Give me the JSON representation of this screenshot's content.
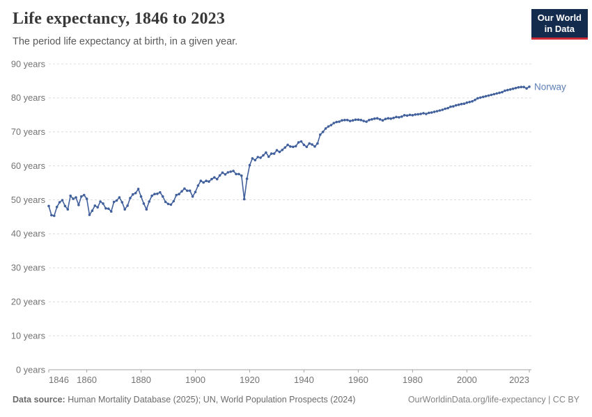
{
  "header": {
    "title": "Life expectancy, 1846 to 2023",
    "subtitle": "The period life expectancy at birth, in a given year.",
    "logo": {
      "line1": "Our World",
      "line2": "in Data",
      "bg_color": "#132c4e",
      "accent_color": "#cc2b36"
    }
  },
  "chart_data": {
    "type": "line",
    "title": "Life expectancy, 1846 to 2023",
    "xlabel": "",
    "ylabel": "years",
    "x_range": [
      1846,
      2023
    ],
    "ylim": [
      0,
      90
    ],
    "grid": "horizontal-dashed",
    "legend_position": "end-of-line-label",
    "y_ticks": [
      0,
      10,
      20,
      30,
      40,
      50,
      60,
      70,
      80,
      90
    ],
    "y_tick_labels": [
      "0 years",
      "10 years",
      "20 years",
      "30 years",
      "40 years",
      "50 years",
      "60 years",
      "70 years",
      "80 years",
      "90 years"
    ],
    "x_ticks": [
      1846,
      1860,
      1880,
      1900,
      1920,
      1940,
      1960,
      1980,
      2000,
      2023
    ],
    "x_tick_labels": [
      "1846",
      "1860",
      "1880",
      "1900",
      "1920",
      "1940",
      "1960",
      "1980",
      "2000",
      "2023"
    ],
    "colors": {
      "line": "#41609c",
      "entity_label": "#5b7db4",
      "gridline": "#dcdcdc",
      "axis": "#a3a3a3",
      "tick_text": "#737373"
    },
    "series": [
      {
        "name": "Norway",
        "start_year": 1846,
        "end_year": 2023,
        "values": [
          48.2,
          45.5,
          45.3,
          47.9,
          49.3,
          49.9,
          48.2,
          47.2,
          51.2,
          50.3,
          50.7,
          48.5,
          51.0,
          51.4,
          50.3,
          45.6,
          46.8,
          48.3,
          47.8,
          49.5,
          48.9,
          47.5,
          47.4,
          46.6,
          49.4,
          49.8,
          50.7,
          49.3,
          47.2,
          48.3,
          50.5,
          51.6,
          52.0,
          53.2,
          51.0,
          48.9,
          47.2,
          49.5,
          51.2,
          51.7,
          51.8,
          52.2,
          51.0,
          49.4,
          48.8,
          48.6,
          49.6,
          51.4,
          51.7,
          52.5,
          53.3,
          52.7,
          52.7,
          51.0,
          52.3,
          54.2,
          55.6,
          55.1,
          55.6,
          55.4,
          56.1,
          56.6,
          56.1,
          57.2,
          58.0,
          57.5,
          58.1,
          58.3,
          58.5,
          57.6,
          57.6,
          57.1,
          50.2,
          56.2,
          60.2,
          62.2,
          61.7,
          62.6,
          62.4,
          63.1,
          63.9,
          62.7,
          63.6,
          63.6,
          64.6,
          64.1,
          64.7,
          65.4,
          66.2,
          65.7,
          65.6,
          65.8,
          66.9,
          67.2,
          66.2,
          65.6,
          66.6,
          66.3,
          65.7,
          66.6,
          69.2,
          70.0,
          71.0,
          71.6,
          72.0,
          72.6,
          72.9,
          73.0,
          73.4,
          73.5,
          73.5,
          73.2,
          73.4,
          73.6,
          73.6,
          73.5,
          73.2,
          73.0,
          73.5,
          73.7,
          73.9,
          74.0,
          73.7,
          73.4,
          73.8,
          74.0,
          73.9,
          74.1,
          74.4,
          74.3,
          74.5,
          74.9,
          74.8,
          75.0,
          74.9,
          75.1,
          75.2,
          75.3,
          75.5,
          75.3,
          75.6,
          75.7,
          75.9,
          76.1,
          76.3,
          76.5,
          76.8,
          77.0,
          77.4,
          77.5,
          77.8,
          78.0,
          78.2,
          78.3,
          78.6,
          78.8,
          79.0,
          79.4,
          79.9,
          80.1,
          80.3,
          80.5,
          80.7,
          80.9,
          81.1,
          81.3,
          81.5,
          81.7,
          82.1,
          82.3,
          82.5,
          82.7,
          82.9,
          83.1,
          83.2,
          83.2,
          82.8,
          83.3
        ]
      }
    ]
  },
  "footer": {
    "data_source_label": "Data source:",
    "data_source_value": " Human Mortality Database (2025); UN, World Population Prospects (2024)",
    "credit": "OurWorldinData.org/life-expectancy | CC BY"
  }
}
